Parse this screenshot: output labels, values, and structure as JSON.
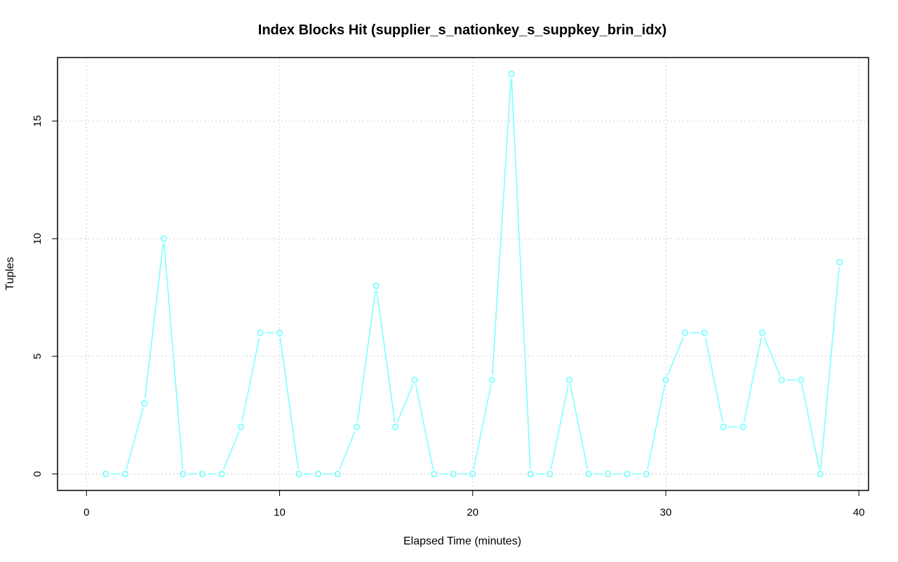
{
  "chart_data": {
    "type": "line",
    "title": "Index Blocks Hit (supplier_s_nationkey_s_suppkey_brin_idx)",
    "xlabel": "Elapsed Time (minutes)",
    "ylabel": "Tuples",
    "xlim": [
      -1.5,
      40.5
    ],
    "ylim": [
      -0.7,
      17.7
    ],
    "xticks": [
      0,
      10,
      20,
      30,
      40
    ],
    "xtick_labels": [
      "0",
      "10",
      "20",
      "30",
      "40"
    ],
    "yticks": [
      0,
      5,
      10,
      15
    ],
    "ytick_labels": [
      "0",
      "5",
      "10",
      "15"
    ],
    "grid": true,
    "legend": "none",
    "series": [
      {
        "color": "#7fffff",
        "marker": "open-circle",
        "x": [
          1,
          2,
          3,
          4,
          5,
          6,
          7,
          8,
          9,
          10,
          11,
          12,
          13,
          14,
          15,
          16,
          17,
          18,
          19,
          20,
          21,
          22,
          23,
          24,
          25,
          26,
          27,
          28,
          29,
          30,
          31,
          32,
          33,
          34,
          35,
          36,
          37,
          38,
          39
        ],
        "values": [
          0,
          0,
          3,
          10,
          0,
          0,
          0,
          2,
          6,
          6,
          0,
          0,
          0,
          2,
          8,
          2,
          4,
          0,
          0,
          0,
          4,
          17,
          0,
          0,
          4,
          0,
          0,
          0,
          0,
          4,
          6,
          6,
          2,
          2,
          6,
          4,
          4,
          0,
          9
        ]
      }
    ]
  }
}
